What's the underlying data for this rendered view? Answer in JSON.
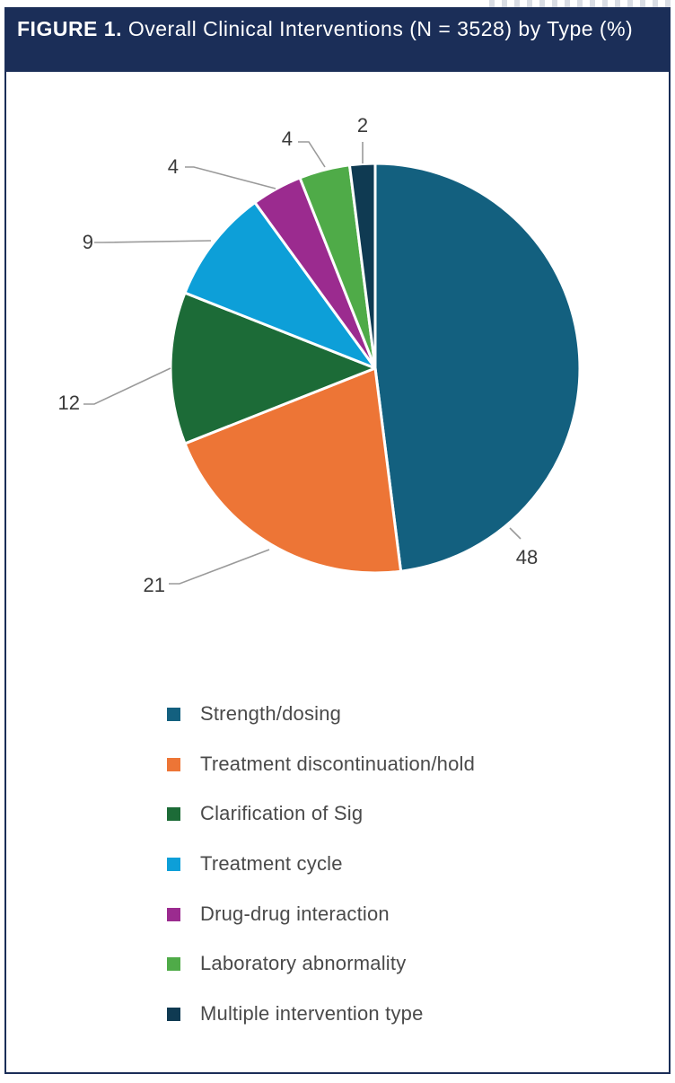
{
  "figure": {
    "label": "FIGURE 1.",
    "title": "Overall Clinical Interventions (N = 3528) by Type (%)"
  },
  "chart_data": {
    "type": "pie",
    "title": "Overall Clinical Interventions (N = 3528) by Type (%)",
    "unit": "%",
    "legend_position": "bottom",
    "slices": [
      {
        "label": "Strength/dosing",
        "value": 48,
        "color": "#13607f"
      },
      {
        "label": "Treatment discontinuation/hold",
        "value": 21,
        "color": "#ed7536"
      },
      {
        "label": "Clarification of Sig",
        "value": 12,
        "color": "#1c6b37"
      },
      {
        "label": "Treatment cycle",
        "value": 9,
        "color": "#0d9fd8"
      },
      {
        "label": "Drug-drug interaction",
        "value": 4,
        "color": "#9b2b8f"
      },
      {
        "label": "Laboratory abnormality",
        "value": 4,
        "color": "#4fab48"
      },
      {
        "label": "Multiple intervention type",
        "value": 2,
        "color": "#0f3a52"
      }
    ]
  },
  "colors": {
    "header_background": "#1b2e58",
    "header_text": "#ffffff",
    "leader_line": "#9a9a9a",
    "label_text": "#3a3a3a"
  }
}
